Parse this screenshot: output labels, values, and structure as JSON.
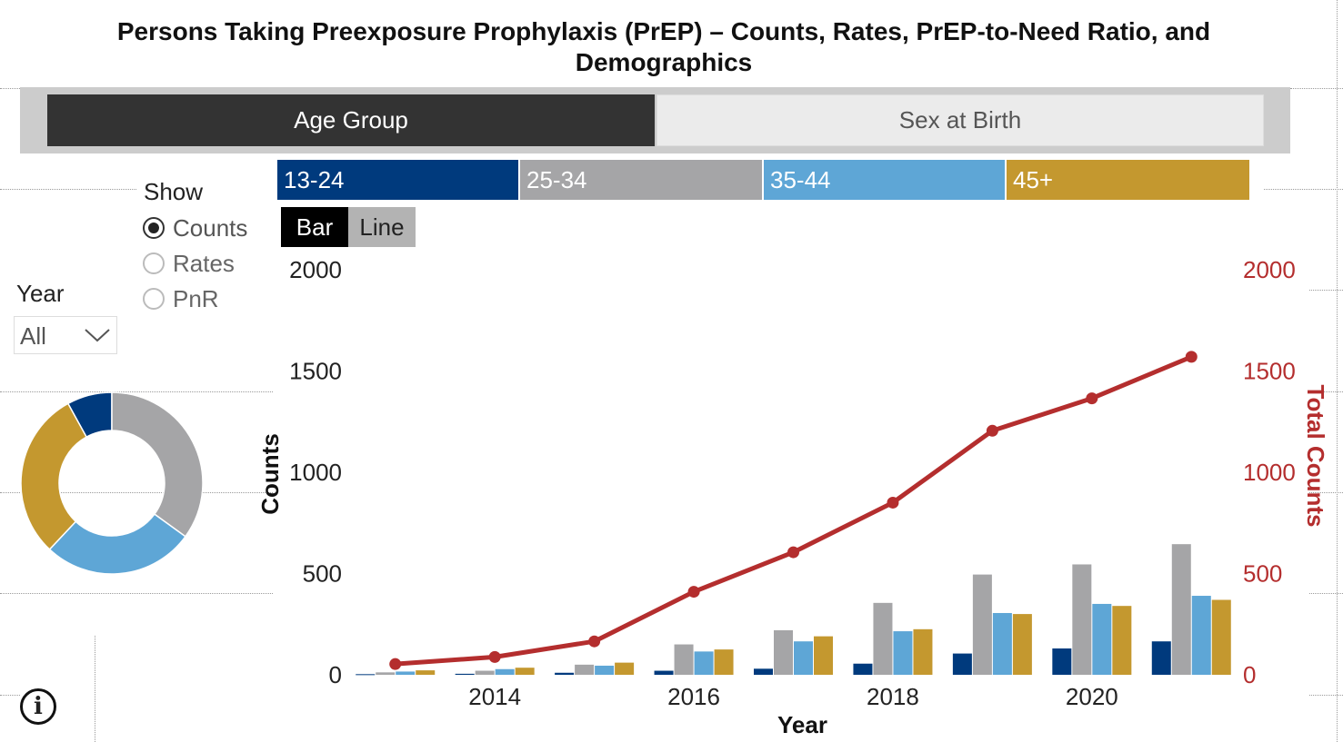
{
  "title": "Persons Taking Preexposure Prophylaxis (PrEP) – Counts, Rates, PrEP-to-Need Ratio, and Demographics",
  "tabs": [
    {
      "label": "Age Group",
      "active": true
    },
    {
      "label": "Sex at Birth",
      "active": false
    }
  ],
  "show": {
    "label": "Show",
    "options": [
      "Counts",
      "Rates",
      "PnR"
    ],
    "selected": "Counts"
  },
  "year_filter": {
    "label": "Year",
    "value": "All"
  },
  "chart_toggle": {
    "bar_label": "Bar",
    "line_label": "Line",
    "selected": "Bar"
  },
  "legend": [
    {
      "label": "13-24",
      "color": "#003a7d"
    },
    {
      "label": "25-34",
      "color": "#a5a5a7"
    },
    {
      "label": "35-44",
      "color": "#5ea6d6"
    },
    {
      "label": "45+",
      "color": "#c4982f"
    }
  ],
  "colors": {
    "total_line": "#b42e2e"
  },
  "chart_data": [
    {
      "type": "bar",
      "xlabel": "Year",
      "ylabel": "Counts",
      "y2label": "Total Counts",
      "x": [
        2013,
        2014,
        2015,
        2016,
        2017,
        2018,
        2019,
        2020,
        2021
      ],
      "x_ticks": [
        2014,
        2016,
        2018,
        2020
      ],
      "ylim": [
        0,
        2000
      ],
      "y_ticks": [
        0,
        500,
        1000,
        1500,
        2000
      ],
      "y2lim": [
        0,
        2000
      ],
      "y2_ticks": [
        0,
        500,
        1000,
        1500,
        2000
      ],
      "series": [
        {
          "name": "13-24",
          "values": [
            3,
            5,
            10,
            20,
            30,
            55,
            105,
            130,
            165
          ]
        },
        {
          "name": "25-34",
          "values": [
            12,
            20,
            50,
            150,
            220,
            355,
            495,
            545,
            645
          ]
        },
        {
          "name": "35-44",
          "values": [
            16,
            28,
            45,
            115,
            165,
            215,
            305,
            350,
            390
          ]
        },
        {
          "name": "45+",
          "values": [
            22,
            35,
            60,
            125,
            190,
            225,
            300,
            340,
            370
          ]
        }
      ],
      "line_series": {
        "name": "Total Counts",
        "values": [
          53,
          88,
          165,
          410,
          605,
          850,
          1205,
          1365,
          1570
        ]
      },
      "grid": false
    },
    {
      "type": "pie",
      "donut": true,
      "labels": [
        "13-24",
        "25-34",
        "35-44",
        "45+"
      ],
      "values": [
        8,
        35,
        27,
        30
      ]
    }
  ]
}
